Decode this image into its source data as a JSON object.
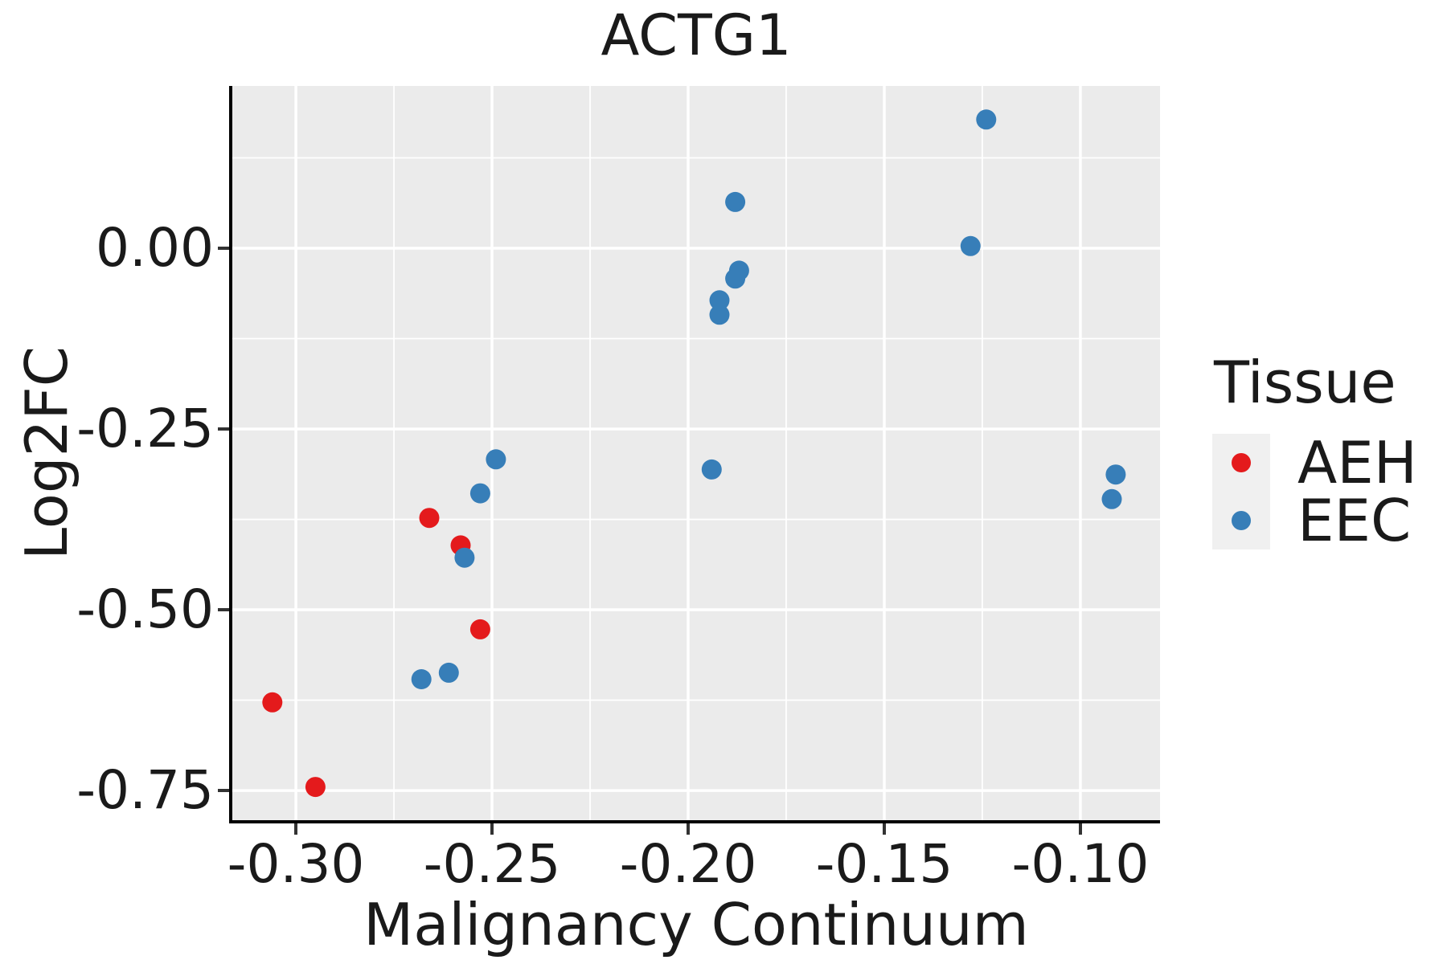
{
  "title": "ACTG1",
  "chart_data": {
    "type": "scatter",
    "title": "ACTG1",
    "xlabel": "Malignancy Continuum",
    "ylabel": "Log2FC",
    "xlim": [
      -0.3162,
      -0.0797
    ],
    "ylim": [
      -0.791,
      0.2244
    ],
    "grid": true,
    "legend_position": "right",
    "x_major_ticks": [
      -0.3,
      -0.25,
      -0.2,
      -0.15,
      -0.1
    ],
    "x_tick_labels": [
      "-0.30",
      "-0.25",
      "-0.20",
      "-0.15",
      "-0.10"
    ],
    "x_minor_ticks": [
      -0.275,
      -0.225,
      -0.175,
      -0.125
    ],
    "y_major_ticks": [
      0.0,
      -0.25,
      -0.5,
      -0.75
    ],
    "y_tick_labels": [
      "0.00",
      "-0.25",
      "-0.50",
      "-0.75"
    ],
    "y_minor_ticks": [
      0.125,
      -0.125,
      -0.375,
      -0.625
    ],
    "series": [
      {
        "name": "AEH",
        "color": "#E41A1C",
        "points": [
          [
            -0.306,
            -0.628
          ],
          [
            -0.295,
            -0.745
          ],
          [
            -0.266,
            -0.373
          ],
          [
            -0.258,
            -0.411
          ],
          [
            -0.253,
            -0.527
          ]
        ]
      },
      {
        "name": "EEC",
        "color": "#377EB8",
        "points": [
          [
            -0.268,
            -0.596
          ],
          [
            -0.261,
            -0.587
          ],
          [
            -0.257,
            -0.428
          ],
          [
            -0.253,
            -0.339
          ],
          [
            -0.249,
            -0.292
          ],
          [
            -0.194,
            -0.306
          ],
          [
            -0.192,
            -0.092
          ],
          [
            -0.192,
            -0.072
          ],
          [
            -0.188,
            -0.042
          ],
          [
            -0.187,
            -0.031
          ],
          [
            -0.188,
            0.064
          ],
          [
            -0.128,
            0.003
          ],
          [
            -0.124,
            0.178
          ],
          [
            -0.092,
            -0.347
          ],
          [
            -0.091,
            -0.313
          ]
        ]
      }
    ]
  },
  "legend": {
    "title": "Tissue",
    "items": [
      {
        "label": "AEH",
        "color": "#E41A1C"
      },
      {
        "label": "EEC",
        "color": "#377EB8"
      }
    ]
  },
  "colors": {
    "page_bg": "#FFFFFF",
    "panel_bg": "#EBEBEB",
    "grid": "#FFFFFF",
    "axis_line": "#000000",
    "tick_mark": "#333333",
    "text": "#1A1A1A",
    "legend_key_bg": "#F0F0F0",
    "aeh": "#E41A1C",
    "eec": "#377EB8"
  }
}
